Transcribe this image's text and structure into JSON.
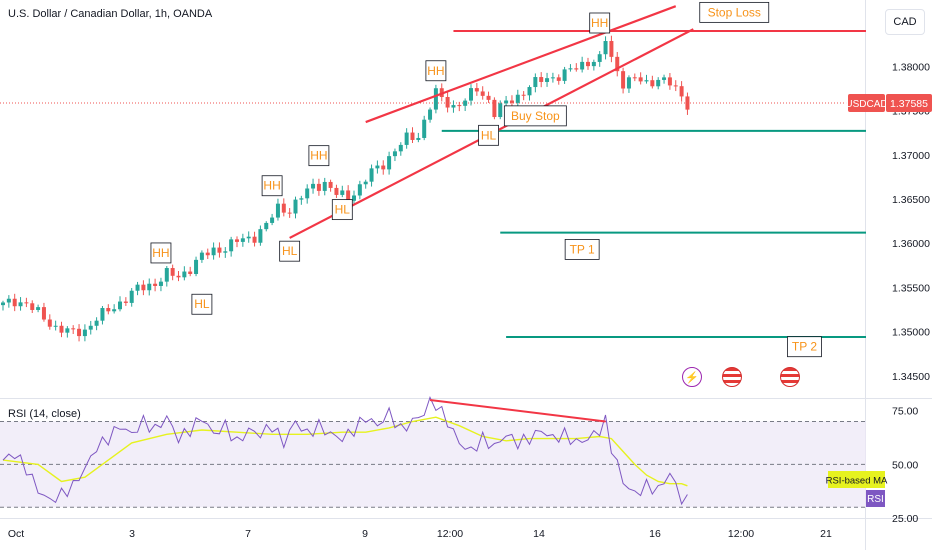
{
  "header": {
    "title": "U.S. Dollar / Canadian Dollar, 1h, OANDA",
    "currency": "CAD"
  },
  "rsi_pane": {
    "title": "RSI (14, close)"
  },
  "colors": {
    "up": "#26a69a",
    "down": "#ef5350",
    "trendline": "#f23645",
    "level": "#089981",
    "annotation_text": "#f7931a",
    "rsi_line": "#7e57c2",
    "rsi_ma": "#e6f21f",
    "rsi_band": "#ede7f6"
  },
  "chart_data": [
    {
      "type": "candlestick",
      "symbol": "USDCAD",
      "last_price": 1.37585,
      "last_price_label": "1.37585",
      "y_ticks": [
        1.345,
        1.35,
        1.355,
        1.36,
        1.365,
        1.37,
        1.375,
        1.38
      ],
      "y_tick_labels": [
        "1.34500",
        "1.35000",
        "1.35500",
        "1.36000",
        "1.36500",
        "1.37000",
        "1.37500",
        "1.38000"
      ],
      "ylim": [
        1.3425,
        1.3875
      ],
      "x_tick_labels": [
        "Oct",
        "3",
        "7",
        "9",
        "12:00",
        "14",
        "16",
        "12:00",
        "21"
      ],
      "price_path": [
        [
          0,
          1.353
        ],
        [
          2,
          1.3535
        ],
        [
          4,
          1.3532
        ],
        [
          7,
          1.3515
        ],
        [
          9,
          1.3505
        ],
        [
          12,
          1.3498
        ],
        [
          14,
          1.3502
        ],
        [
          16,
          1.3515
        ],
        [
          19,
          1.3528
        ],
        [
          21,
          1.3538
        ],
        [
          23,
          1.3548
        ],
        [
          26,
          1.3555
        ],
        [
          28,
          1.3565
        ],
        [
          30,
          1.3562
        ],
        [
          32,
          1.3572
        ],
        [
          34,
          1.3585
        ],
        [
          36,
          1.3592
        ],
        [
          38,
          1.3595
        ],
        [
          40,
          1.3602
        ],
        [
          43,
          1.3608
        ],
        [
          45,
          1.362
        ],
        [
          47,
          1.364
        ],
        [
          49,
          1.3638
        ],
        [
          51,
          1.3652
        ],
        [
          53,
          1.3665
        ],
        [
          55,
          1.3668
        ],
        [
          57,
          1.3655
        ],
        [
          59,
          1.3652
        ],
        [
          61,
          1.3664
        ],
        [
          63,
          1.368
        ],
        [
          65,
          1.369
        ],
        [
          67,
          1.3705
        ],
        [
          69,
          1.3718
        ],
        [
          71,
          1.3722
        ],
        [
          73,
          1.3755
        ],
        [
          74,
          1.377
        ],
        [
          75,
          1.3762
        ],
        [
          77,
          1.3755
        ],
        [
          79,
          1.3762
        ],
        [
          81,
          1.3774
        ],
        [
          83,
          1.3762
        ],
        [
          84,
          1.3748
        ],
        [
          86,
          1.3758
        ],
        [
          88,
          1.3766
        ],
        [
          90,
          1.3778
        ],
        [
          92,
          1.3784
        ],
        [
          94,
          1.3788
        ],
        [
          96,
          1.3792
        ],
        [
          98,
          1.3798
        ],
        [
          100,
          1.3806
        ],
        [
          102,
          1.3808
        ],
        [
          103,
          1.383
        ],
        [
          104,
          1.3808
        ],
        [
          106,
          1.3782
        ],
        [
          108,
          1.3786
        ],
        [
          110,
          1.378
        ],
        [
          112,
          1.3787
        ],
        [
          114,
          1.378
        ],
        [
          116,
          1.3766
        ],
        [
          117,
          1.3758
        ]
      ],
      "annotations": [
        {
          "label": "HH",
          "x": 27,
          "price": 1.3589
        },
        {
          "label": "HL",
          "x": 34,
          "price": 1.3531
        },
        {
          "label": "HH",
          "x": 46,
          "price": 1.3665
        },
        {
          "label": "HL",
          "x": 49,
          "price": 1.3591
        },
        {
          "label": "HH",
          "x": 54,
          "price": 1.3699
        },
        {
          "label": "HL",
          "x": 58,
          "price": 1.3638
        },
        {
          "label": "HH",
          "x": 74,
          "price": 1.3795
        },
        {
          "label": "HL",
          "x": 83,
          "price": 1.3722
        },
        {
          "label": "HH",
          "x": 102,
          "price": 1.3849
        },
        {
          "label": "Buy Stop",
          "x": 91,
          "price": 1.3744
        },
        {
          "label": "Stop Loss",
          "x": 125,
          "price": 1.3861
        },
        {
          "label": "TP 1",
          "x": 99,
          "price": 1.3593
        },
        {
          "label": "TP 2",
          "x": 137,
          "price": 1.3483
        }
      ],
      "levels": [
        {
          "name": "Stop Loss",
          "price": 1.384,
          "x_start": 77
        },
        {
          "name": "Buy Stop",
          "price": 1.3727,
          "x_start": 75
        },
        {
          "name": "TP 1",
          "price": 1.3612,
          "x_start": 85
        },
        {
          "name": "TP 2",
          "price": 1.3494,
          "x_start": 86
        }
      ],
      "trendlines": [
        {
          "from": [
            62,
            1.3737
          ],
          "to": [
            115,
            1.3868
          ]
        },
        {
          "from": [
            49,
            1.3606
          ],
          "to": [
            118,
            1.3842
          ]
        }
      ]
    },
    {
      "type": "line",
      "indicator": "RSI (14, close)",
      "y_ticks": [
        25,
        50,
        75
      ],
      "y_tick_labels": [
        "25.00",
        "50.00",
        "75.00"
      ],
      "bands": [
        30,
        70
      ],
      "ylim": [
        25,
        80
      ],
      "ma_label": "RSI-based MA",
      "rsi_label": "RSI",
      "rsi": [
        [
          0,
          52
        ],
        [
          2,
          55
        ],
        [
          4,
          48
        ],
        [
          6,
          38
        ],
        [
          8,
          33
        ],
        [
          10,
          36
        ],
        [
          12,
          40
        ],
        [
          14,
          48
        ],
        [
          16,
          58
        ],
        [
          18,
          62
        ],
        [
          20,
          68
        ],
        [
          22,
          64
        ],
        [
          24,
          70
        ],
        [
          26,
          66
        ],
        [
          28,
          72
        ],
        [
          30,
          62
        ],
        [
          32,
          66
        ],
        [
          34,
          72
        ],
        [
          36,
          64
        ],
        [
          38,
          68
        ],
        [
          40,
          60
        ],
        [
          42,
          66
        ],
        [
          44,
          64
        ],
        [
          46,
          68
        ],
        [
          48,
          60
        ],
        [
          50,
          70
        ],
        [
          52,
          64
        ],
        [
          54,
          68
        ],
        [
          56,
          64
        ],
        [
          58,
          62
        ],
        [
          60,
          66
        ],
        [
          62,
          72
        ],
        [
          64,
          68
        ],
        [
          66,
          74
        ],
        [
          68,
          66
        ],
        [
          70,
          70
        ],
        [
          72,
          74
        ],
        [
          73,
          79
        ],
        [
          74,
          78
        ],
        [
          76,
          70
        ],
        [
          78,
          60
        ],
        [
          80,
          56
        ],
        [
          82,
          62
        ],
        [
          84,
          58
        ],
        [
          86,
          64
        ],
        [
          88,
          60
        ],
        [
          90,
          62
        ],
        [
          92,
          66
        ],
        [
          94,
          62
        ],
        [
          96,
          64
        ],
        [
          98,
          60
        ],
        [
          100,
          62
        ],
        [
          102,
          66
        ],
        [
          103,
          70
        ],
        [
          104,
          58
        ],
        [
          106,
          42
        ],
        [
          108,
          36
        ],
        [
          110,
          40
        ],
        [
          112,
          38
        ],
        [
          114,
          46
        ],
        [
          116,
          34
        ],
        [
          117,
          33
        ]
      ],
      "rsi_ma": [
        [
          0,
          52
        ],
        [
          6,
          50
        ],
        [
          10,
          42
        ],
        [
          14,
          44
        ],
        [
          18,
          52
        ],
        [
          22,
          60
        ],
        [
          28,
          64
        ],
        [
          34,
          66
        ],
        [
          40,
          65
        ],
        [
          46,
          64
        ],
        [
          52,
          64
        ],
        [
          58,
          65
        ],
        [
          62,
          65
        ],
        [
          66,
          67
        ],
        [
          70,
          70
        ],
        [
          74,
          72
        ],
        [
          78,
          68
        ],
        [
          82,
          63
        ],
        [
          86,
          61
        ],
        [
          90,
          62
        ],
        [
          94,
          62
        ],
        [
          98,
          62
        ],
        [
          102,
          63
        ],
        [
          104,
          62
        ],
        [
          106,
          56
        ],
        [
          108,
          50
        ],
        [
          110,
          45
        ],
        [
          112,
          42
        ],
        [
          114,
          41
        ],
        [
          116,
          41
        ],
        [
          117,
          40
        ]
      ],
      "divergence": {
        "from": [
          73,
          80
        ],
        "to": [
          103,
          70
        ]
      }
    }
  ]
}
